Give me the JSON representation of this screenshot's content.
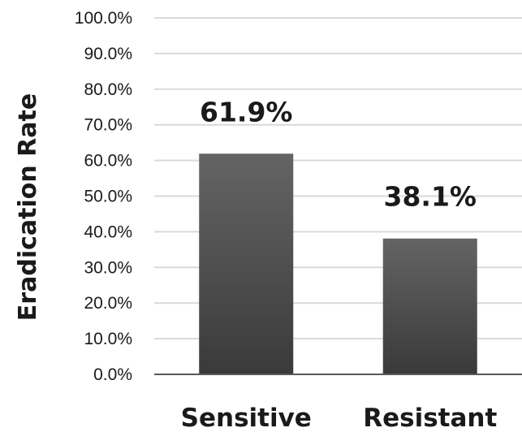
{
  "chart_data": {
    "type": "bar",
    "categories": [
      "Sensitive",
      "Resistant"
    ],
    "values": [
      61.9,
      38.1
    ],
    "data_labels": [
      "61.9%",
      "38.1%"
    ],
    "title": "",
    "xlabel": "",
    "ylabel": "Eradication Rate",
    "ylim": [
      0,
      100
    ],
    "yticks": [
      "0.0%",
      "10.0%",
      "20.0%",
      "30.0%",
      "40.0%",
      "50.0%",
      "60.0%",
      "70.0%",
      "80.0%",
      "90.0%",
      "100.0%"
    ],
    "grid": true,
    "legend": "none",
    "colors": {
      "bar_top": "#646464",
      "bar_bottom": "#3a3a3a",
      "grid": "#d9d9d9",
      "axis": "#595959",
      "text": "#1a1a1a"
    }
  }
}
